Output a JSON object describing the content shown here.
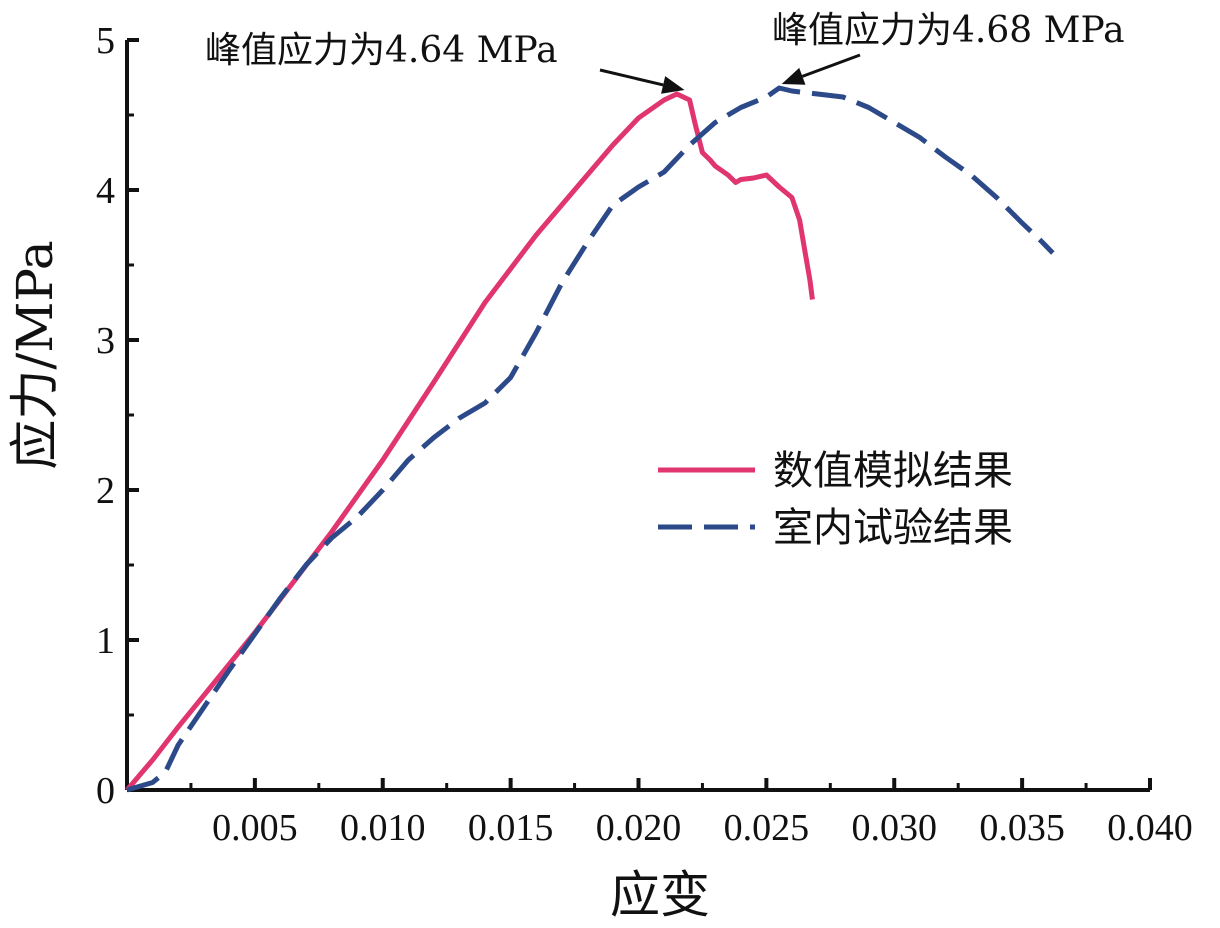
{
  "chart_data": {
    "type": "line",
    "xlabel": "应变",
    "ylabel": "应力/MPa",
    "xlim": [
      0,
      0.04
    ],
    "ylim": [
      0,
      5
    ],
    "x_ticks": [
      "0.005",
      "0.010",
      "0.015",
      "0.020",
      "0.025",
      "0.030",
      "0.035",
      "0.040"
    ],
    "x_tick_values": [
      0.005,
      0.01,
      0.015,
      0.02,
      0.025,
      0.03,
      0.035,
      0.04
    ],
    "y_ticks": [
      "0",
      "1",
      "2",
      "3",
      "4",
      "5"
    ],
    "y_tick_values": [
      0,
      1,
      2,
      3,
      4,
      5
    ],
    "grid": false,
    "legend_position": "right",
    "series": [
      {
        "name": "数值模拟结果",
        "color": "#e0356e",
        "dash": "solid",
        "x": [
          0,
          0.0003,
          0.0006,
          0.001,
          0.002,
          0.005,
          0.008,
          0.01,
          0.012,
          0.014,
          0.016,
          0.018,
          0.019,
          0.02,
          0.021,
          0.0215,
          0.022,
          0.0222,
          0.0225,
          0.0228,
          0.023,
          0.0235,
          0.0238,
          0.024,
          0.0245,
          0.025,
          0.0255,
          0.026,
          0.0263,
          0.0265,
          0.0267,
          0.0268
        ],
        "y": [
          0,
          0.06,
          0.12,
          0.2,
          0.42,
          1.05,
          1.72,
          2.2,
          2.72,
          3.25,
          3.7,
          4.1,
          4.3,
          4.48,
          4.6,
          4.64,
          4.6,
          4.45,
          4.25,
          4.2,
          4.16,
          4.1,
          4.05,
          4.07,
          4.08,
          4.1,
          4.02,
          3.95,
          3.8,
          3.6,
          3.4,
          3.27
        ]
      },
      {
        "name": "室内试验结果",
        "color": "#2c4a8a",
        "dash": "dashed",
        "x": [
          0,
          0.001,
          0.0015,
          0.002,
          0.003,
          0.004,
          0.006,
          0.007,
          0.008,
          0.009,
          0.01,
          0.011,
          0.012,
          0.013,
          0.014,
          0.015,
          0.016,
          0.017,
          0.018,
          0.019,
          0.02,
          0.021,
          0.022,
          0.023,
          0.024,
          0.025,
          0.0255,
          0.026,
          0.027,
          0.028,
          0.029,
          0.03,
          0.031,
          0.032,
          0.033,
          0.034,
          0.035,
          0.0358,
          0.0362
        ],
        "y": [
          0,
          0.05,
          0.12,
          0.3,
          0.55,
          0.8,
          1.28,
          1.5,
          1.68,
          1.82,
          2.0,
          2.2,
          2.35,
          2.48,
          2.58,
          2.75,
          3.05,
          3.38,
          3.65,
          3.9,
          4.02,
          4.12,
          4.3,
          4.45,
          4.55,
          4.62,
          4.68,
          4.66,
          4.64,
          4.62,
          4.55,
          4.45,
          4.35,
          4.22,
          4.1,
          3.95,
          3.78,
          3.65,
          3.58
        ]
      }
    ],
    "annotations": [
      {
        "text": "峰值应力为4.64 MPa",
        "x": 0.0218,
        "y": 4.64
      },
      {
        "text": "峰值应力为4.68 MPa",
        "x": 0.0256,
        "y": 4.68
      }
    ]
  }
}
